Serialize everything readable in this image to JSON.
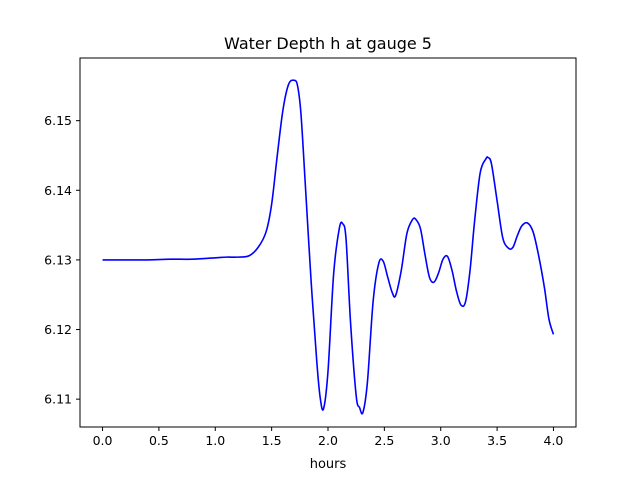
{
  "chart_data": {
    "type": "line",
    "title": "Water Depth h at gauge 5",
    "xlabel": "hours",
    "ylabel": "",
    "xlim": [
      -0.2,
      4.2
    ],
    "ylim": [
      6.106,
      6.159
    ],
    "xticks": [
      0.0,
      0.5,
      1.0,
      1.5,
      2.0,
      2.5,
      3.0,
      3.5,
      4.0
    ],
    "xtick_labels": [
      "0.0",
      "0.5",
      "1.0",
      "1.5",
      "2.0",
      "2.5",
      "3.0",
      "3.5",
      "4.0"
    ],
    "yticks": [
      6.11,
      6.12,
      6.13,
      6.14,
      6.15
    ],
    "ytick_labels": [
      "6.11",
      "6.12",
      "6.13",
      "6.14",
      "6.15"
    ],
    "grid": false,
    "legend": "none",
    "series": [
      {
        "color": "#0000ff",
        "x": [
          0.0,
          0.2,
          0.4,
          0.6,
          0.8,
          1.0,
          1.1,
          1.2,
          1.3,
          1.38,
          1.45,
          1.5,
          1.55,
          1.6,
          1.65,
          1.7,
          1.73,
          1.76,
          1.8,
          1.85,
          1.9,
          1.93,
          1.96,
          2.0,
          2.05,
          2.1,
          2.13,
          2.16,
          2.2,
          2.25,
          2.28,
          2.31,
          2.35,
          2.4,
          2.45,
          2.49,
          2.53,
          2.57,
          2.6,
          2.65,
          2.7,
          2.75,
          2.78,
          2.82,
          2.86,
          2.9,
          2.94,
          2.98,
          3.02,
          3.06,
          3.1,
          3.14,
          3.18,
          3.22,
          3.26,
          3.3,
          3.35,
          3.4,
          3.42,
          3.45,
          3.5,
          3.55,
          3.6,
          3.64,
          3.68,
          3.72,
          3.77,
          3.82,
          3.87,
          3.92,
          3.96,
          4.0
        ],
        "y": [
          6.13,
          6.13,
          6.13,
          6.1301,
          6.1301,
          6.1303,
          6.1304,
          6.1304,
          6.1306,
          6.1318,
          6.134,
          6.138,
          6.145,
          6.1515,
          6.1552,
          6.1558,
          6.155,
          6.151,
          6.1405,
          6.127,
          6.1155,
          6.1103,
          6.1086,
          6.114,
          6.128,
          6.1345,
          6.1352,
          6.133,
          6.121,
          6.1105,
          6.1088,
          6.1081,
          6.1125,
          6.124,
          6.1295,
          6.1298,
          6.1275,
          6.1253,
          6.1249,
          6.1285,
          6.1338,
          6.1358,
          6.1358,
          6.1345,
          6.1308,
          6.1275,
          6.1268,
          6.1281,
          6.1301,
          6.1305,
          6.1285,
          6.1255,
          6.1235,
          6.124,
          6.1285,
          6.1355,
          6.1425,
          6.1445,
          6.1447,
          6.1438,
          6.1385,
          6.1332,
          6.1317,
          6.1318,
          6.1335,
          6.1349,
          6.1353,
          6.134,
          6.1305,
          6.126,
          6.1215,
          6.1193
        ]
      }
    ]
  }
}
